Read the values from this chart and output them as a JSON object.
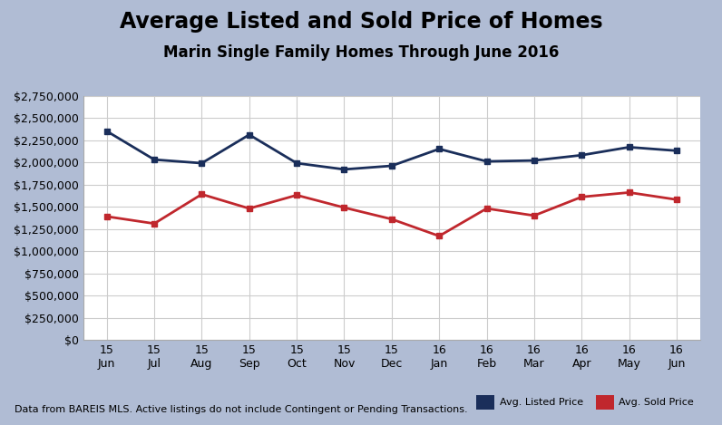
{
  "title": "Average Listed and Sold Price of Homes",
  "subtitle": "Marin Single Family Homes Through June 2016",
  "x_labels_top": [
    "15",
    "15",
    "15",
    "15",
    "15",
    "15",
    "15",
    "16",
    "16",
    "16",
    "16",
    "16",
    "16"
  ],
  "x_labels_bot": [
    "Jun",
    "Jul",
    "Aug",
    "Sep",
    "Oct",
    "Nov",
    "Dec",
    "Jan",
    "Feb",
    "Mar",
    "Apr",
    "May",
    "Jun"
  ],
  "listed_prices": [
    2350000,
    2030000,
    1990000,
    2310000,
    1990000,
    1920000,
    1960000,
    2150000,
    2010000,
    2020000,
    2080000,
    2170000,
    2130000
  ],
  "sold_prices": [
    1390000,
    1310000,
    1640000,
    1480000,
    1630000,
    1490000,
    1360000,
    1170000,
    1480000,
    1400000,
    1610000,
    1660000,
    1580000
  ],
  "listed_color": "#1a2e5a",
  "sold_color": "#c0272d",
  "background_color": "#b0bcd4",
  "plot_bg_color": "#ffffff",
  "grid_color": "#cccccc",
  "ylim": [
    0,
    2750000
  ],
  "yticks": [
    0,
    250000,
    500000,
    750000,
    1000000,
    1250000,
    1500000,
    1750000,
    2000000,
    2250000,
    2500000,
    2750000
  ],
  "ytick_labels": [
    "$0",
    "$250,000",
    "$500,000",
    "$750,000",
    "$1,000,000",
    "$1,250,000",
    "$1,500,000",
    "$1,750,000",
    "$2,000,000",
    "$2,250,000",
    "$2,500,000",
    "$2,750,000"
  ],
  "footer": "Data from BAREIS MLS. Active listings do not include Contingent or Pending Transactions.",
  "legend_listed": "Avg. Listed Price",
  "legend_sold": "Avg. Sold Price",
  "title_fontsize": 17,
  "subtitle_fontsize": 12,
  "tick_fontsize": 9,
  "footer_fontsize": 8
}
